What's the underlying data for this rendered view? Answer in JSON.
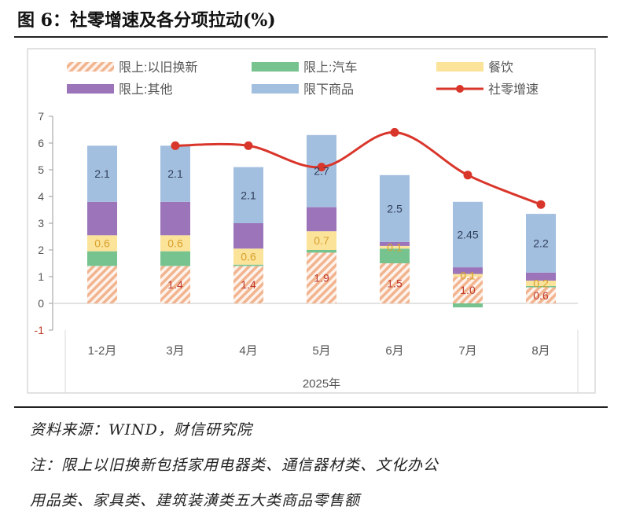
{
  "title": "图 6：社零增速及各分项拉动(%)",
  "source": "资料来源：WIND，财信研究院",
  "note_line1": "注：限上以旧换新包括家用电器类、通信器材类、文化办公",
  "note_line2": "用品类、家具类、建筑装潢类五大类商品零售额",
  "chart_data": {
    "type": "bar",
    "stacked": true,
    "categories": [
      "1-2月",
      "3月",
      "4月",
      "5月",
      "6月",
      "7月",
      "8月"
    ],
    "xlabel": "2025年",
    "ylim": [
      -1,
      7
    ],
    "yticks": [
      "-1",
      "0",
      "1",
      "2",
      "3",
      "4",
      "5",
      "6",
      "7"
    ],
    "grid": false,
    "legend_position": "top",
    "series": [
      {
        "name": "限上:以旧换新",
        "color": "#f2b48f",
        "pattern": "hatch",
        "values": [
          1.4,
          1.4,
          1.4,
          1.9,
          1.5,
          1.0,
          0.6
        ],
        "labels": [
          "",
          "1.4",
          "1.4",
          "1.9",
          "1.5",
          "1.0",
          "0.6"
        ],
        "label_color": "#c0392b"
      },
      {
        "name": "限上:汽车",
        "color": "#77c38f",
        "values": [
          0.55,
          0.55,
          0.05,
          0.1,
          0.55,
          -0.15,
          0.05
        ],
        "labels": [
          "",
          "",
          "",
          "",
          "",
          "",
          ""
        ]
      },
      {
        "name": "餐饮",
        "color": "#fbe39a",
        "values": [
          0.6,
          0.6,
          0.6,
          0.7,
          0.1,
          0.1,
          0.2
        ],
        "labels": [
          "0.6",
          "0.6",
          "0.6",
          "0.7",
          "0.1",
          "0.1",
          "0.2"
        ],
        "label_color": "#d9a02b"
      },
      {
        "name": "限上:其他",
        "color": "#9b74b9",
        "values": [
          1.25,
          1.25,
          0.95,
          0.9,
          0.15,
          0.25,
          0.3
        ],
        "labels": [
          "",
          "",
          "",
          "",
          "",
          "",
          ""
        ]
      },
      {
        "name": "限下商品",
        "color": "#a3bfe0",
        "values": [
          2.1,
          2.1,
          2.1,
          2.7,
          2.5,
          2.45,
          2.2
        ],
        "labels": [
          "2.1",
          "2.1",
          "2.1",
          "2.7",
          "2.5",
          "2.45",
          "2.2"
        ],
        "label_color": "#2f3f5a"
      },
      {
        "name": "社零增速",
        "type": "line",
        "color": "#d9362b",
        "values": [
          null,
          5.9,
          5.9,
          5.1,
          6.4,
          4.8,
          3.7
        ]
      }
    ]
  }
}
